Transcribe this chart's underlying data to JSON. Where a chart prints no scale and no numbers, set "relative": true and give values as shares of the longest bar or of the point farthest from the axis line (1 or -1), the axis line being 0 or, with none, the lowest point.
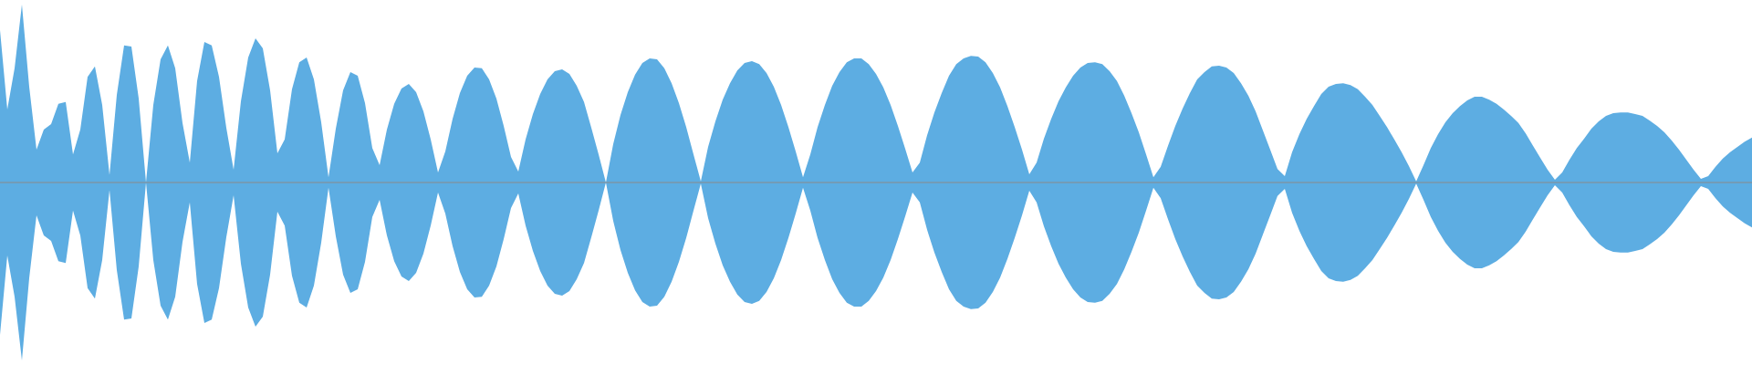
{
  "chart_data": {
    "type": "area",
    "relative": true,
    "categories": [
      null,
      null,
      null,
      null,
      null,
      null,
      null,
      null,
      null,
      null,
      null,
      null,
      null,
      null,
      null,
      null,
      null,
      null,
      null,
      null,
      null,
      null,
      null,
      null,
      null,
      null,
      null,
      null,
      null,
      null,
      null,
      null,
      null,
      null,
      null,
      null,
      null,
      null,
      null,
      null,
      null,
      null,
      null,
      null,
      null,
      null,
      null,
      null,
      null,
      null,
      null,
      null,
      null,
      null,
      null,
      null,
      null,
      null,
      null,
      null,
      null,
      null,
      null,
      null,
      null,
      null,
      null,
      null,
      null,
      null,
      null,
      null,
      null,
      null,
      null,
      null,
      null,
      null,
      null,
      null,
      null,
      null,
      null,
      null,
      null,
      null,
      null,
      null,
      null,
      null,
      null,
      null,
      null,
      null,
      null,
      null,
      null,
      null,
      null,
      null,
      null,
      null,
      null,
      null,
      null,
      null,
      null,
      null,
      null,
      null,
      null,
      null,
      null,
      null,
      null,
      null,
      null,
      null,
      null,
      null,
      null,
      null,
      null,
      null,
      null,
      null,
      null,
      null,
      null,
      null,
      null,
      null,
      null,
      null,
      null,
      null,
      null,
      null,
      null,
      null,
      null,
      null,
      null,
      null,
      null,
      null,
      null,
      null,
      null,
      null,
      null,
      null,
      null,
      null,
      null,
      null,
      null,
      null,
      null,
      null,
      null,
      null,
      null,
      null,
      null,
      null,
      null,
      null,
      null,
      null,
      null,
      null,
      null,
      null,
      null,
      null,
      null,
      null,
      null,
      null,
      null,
      null,
      null,
      null,
      null,
      null,
      null,
      null,
      null,
      null,
      null,
      null,
      null,
      null,
      null,
      null,
      null,
      null,
      null,
      null,
      null,
      null,
      null,
      null,
      null,
      null,
      null,
      null,
      null,
      null,
      null,
      null,
      null,
      null,
      null,
      null,
      null,
      null,
      null,
      null,
      null,
      null,
      null,
      null,
      null,
      null,
      null,
      null,
      null,
      null,
      null,
      null,
      null,
      null,
      null,
      null,
      null,
      null,
      null,
      null,
      null
    ],
    "series": [
      {
        "color": "#5dade2",
        "values": [
          0.856,
          0.41,
          0.642,
          1,
          0.538,
          0.184,
          0.298,
          0.328,
          0.442,
          0.452,
          0.158,
          0.298,
          0.594,
          0.652,
          0.436,
          0.042,
          0.492,
          0.77,
          0.764,
          0.472,
          0,
          0.436,
          0.692,
          0.77,
          0.642,
          0.334,
          0.112,
          0.57,
          0.79,
          0.77,
          0.594,
          0.308,
          0.072,
          0.456,
          0.702,
          0.81,
          0.754,
          0.518,
          0.164,
          0.242,
          0.524,
          0.676,
          0.702,
          0.58,
          0.338,
          0.03,
          0.302,
          0.518,
          0.62,
          0.6,
          0.446,
          0.194,
          0.098,
          0.298,
          0.442,
          0.528,
          0.554,
          0.508,
          0.4,
          0.242,
          0.056,
          0.174,
          0.358,
          0.502,
          0.6,
          0.646,
          0.642,
          0.58,
          0.472,
          0.318,
          0.144,
          0.062,
          0.242,
          0.384,
          0.498,
          0.58,
          0.626,
          0.636,
          0.61,
          0.544,
          0.452,
          0.308,
          0.158,
          0,
          0.216,
          0.38,
          0.508,
          0.606,
          0.672,
          0.698,
          0.692,
          0.642,
          0.558,
          0.446,
          0.312,
          0.158,
          0.006,
          0.2,
          0.344,
          0.466,
          0.558,
          0.63,
          0.672,
          0.682,
          0.666,
          0.616,
          0.538,
          0.436,
          0.312,
          0.174,
          0.03,
          0.158,
          0.312,
          0.436,
          0.544,
          0.62,
          0.676,
          0.698,
          0.698,
          0.666,
          0.61,
          0.534,
          0.436,
          0.318,
          0.19,
          0.056,
          0.112,
          0.266,
          0.394,
          0.502,
          0.6,
          0.666,
          0.698,
          0.712,
          0.708,
          0.676,
          0.616,
          0.534,
          0.43,
          0.312,
          0.184,
          0.046,
          0.112,
          0.246,
          0.358,
          0.456,
          0.534,
          0.6,
          0.646,
          0.672,
          0.676,
          0.666,
          0.626,
          0.57,
          0.488,
          0.39,
          0.282,
          0.158,
          0.03,
          0.088,
          0.206,
          0.318,
          0.416,
          0.502,
          0.58,
          0.62,
          0.652,
          0.656,
          0.646,
          0.616,
          0.558,
          0.488,
          0.4,
          0.292,
          0.184,
          0.076,
          0.036,
          0.17,
          0.272,
          0.358,
          0.43,
          0.498,
          0.538,
          0.554,
          0.558,
          0.548,
          0.524,
          0.482,
          0.436,
          0.374,
          0.312,
          0.242,
          0.17,
          0.092,
          0.006,
          0.098,
          0.194,
          0.272,
          0.338,
          0.39,
          0.43,
          0.462,
          0.482,
          0.482,
          0.466,
          0.442,
          0.41,
          0.374,
          0.334,
          0.276,
          0.206,
          0.138,
          0.072,
          0.016,
          0.056,
          0.128,
          0.194,
          0.246,
          0.302,
          0.344,
          0.374,
          0.39,
          0.394,
          0.394,
          0.384,
          0.374,
          0.348,
          0.318,
          0.282,
          0.236,
          0.184,
          0.128,
          0.072,
          0.02,
          0.036,
          0.088,
          0.134,
          0.17,
          0.2,
          0.23,
          0.252
        ]
      },
      {
        "color": "#5dade2",
        "values": [
          -0.856,
          -0.41,
          -0.642,
          -1,
          -0.538,
          -0.184,
          -0.298,
          -0.328,
          -0.442,
          -0.452,
          -0.158,
          -0.298,
          -0.594,
          -0.652,
          -0.436,
          -0.042,
          -0.492,
          -0.77,
          -0.764,
          -0.472,
          0,
          -0.436,
          -0.692,
          -0.77,
          -0.642,
          -0.334,
          -0.112,
          -0.57,
          -0.79,
          -0.77,
          -0.594,
          -0.308,
          -0.072,
          -0.456,
          -0.702,
          -0.81,
          -0.754,
          -0.518,
          -0.164,
          -0.242,
          -0.524,
          -0.676,
          -0.702,
          -0.58,
          -0.338,
          -0.03,
          -0.302,
          -0.518,
          -0.62,
          -0.6,
          -0.446,
          -0.194,
          -0.098,
          -0.298,
          -0.442,
          -0.528,
          -0.554,
          -0.508,
          -0.4,
          -0.242,
          -0.056,
          -0.174,
          -0.358,
          -0.502,
          -0.6,
          -0.646,
          -0.642,
          -0.58,
          -0.472,
          -0.318,
          -0.144,
          -0.062,
          -0.242,
          -0.384,
          -0.498,
          -0.58,
          -0.626,
          -0.636,
          -0.61,
          -0.544,
          -0.452,
          -0.308,
          -0.158,
          0,
          -0.216,
          -0.38,
          -0.508,
          -0.606,
          -0.672,
          -0.698,
          -0.692,
          -0.642,
          -0.558,
          -0.446,
          -0.312,
          -0.158,
          -0.006,
          -0.2,
          -0.344,
          -0.466,
          -0.558,
          -0.63,
          -0.672,
          -0.682,
          -0.666,
          -0.616,
          -0.538,
          -0.436,
          -0.312,
          -0.174,
          -0.03,
          -0.158,
          -0.312,
          -0.436,
          -0.544,
          -0.62,
          -0.676,
          -0.698,
          -0.698,
          -0.666,
          -0.61,
          -0.534,
          -0.436,
          -0.318,
          -0.19,
          -0.056,
          -0.112,
          -0.266,
          -0.394,
          -0.502,
          -0.6,
          -0.666,
          -0.698,
          -0.712,
          -0.708,
          -0.676,
          -0.616,
          -0.534,
          -0.43,
          -0.312,
          -0.184,
          -0.046,
          -0.112,
          -0.246,
          -0.358,
          -0.456,
          -0.534,
          -0.6,
          -0.646,
          -0.672,
          -0.676,
          -0.666,
          -0.626,
          -0.57,
          -0.488,
          -0.39,
          -0.282,
          -0.158,
          -0.03,
          -0.088,
          -0.206,
          -0.318,
          -0.416,
          -0.502,
          -0.58,
          -0.62,
          -0.652,
          -0.656,
          -0.646,
          -0.616,
          -0.558,
          -0.488,
          -0.4,
          -0.292,
          -0.184,
          -0.076,
          -0.036,
          -0.17,
          -0.272,
          -0.358,
          -0.43,
          -0.498,
          -0.538,
          -0.554,
          -0.558,
          -0.548,
          -0.524,
          -0.482,
          -0.436,
          -0.374,
          -0.312,
          -0.242,
          -0.17,
          -0.092,
          -0.006,
          -0.098,
          -0.194,
          -0.272,
          -0.338,
          -0.39,
          -0.43,
          -0.462,
          -0.482,
          -0.482,
          -0.466,
          -0.442,
          -0.41,
          -0.374,
          -0.334,
          -0.276,
          -0.206,
          -0.138,
          -0.072,
          -0.016,
          -0.056,
          -0.128,
          -0.194,
          -0.246,
          -0.302,
          -0.344,
          -0.374,
          -0.39,
          -0.394,
          -0.394,
          -0.384,
          -0.374,
          -0.348,
          -0.318,
          -0.282,
          -0.236,
          -0.184,
          -0.128,
          -0.072,
          -0.02,
          -0.036,
          -0.088,
          -0.134,
          -0.17,
          -0.2,
          -0.23,
          -0.252
        ]
      }
    ]
  }
}
